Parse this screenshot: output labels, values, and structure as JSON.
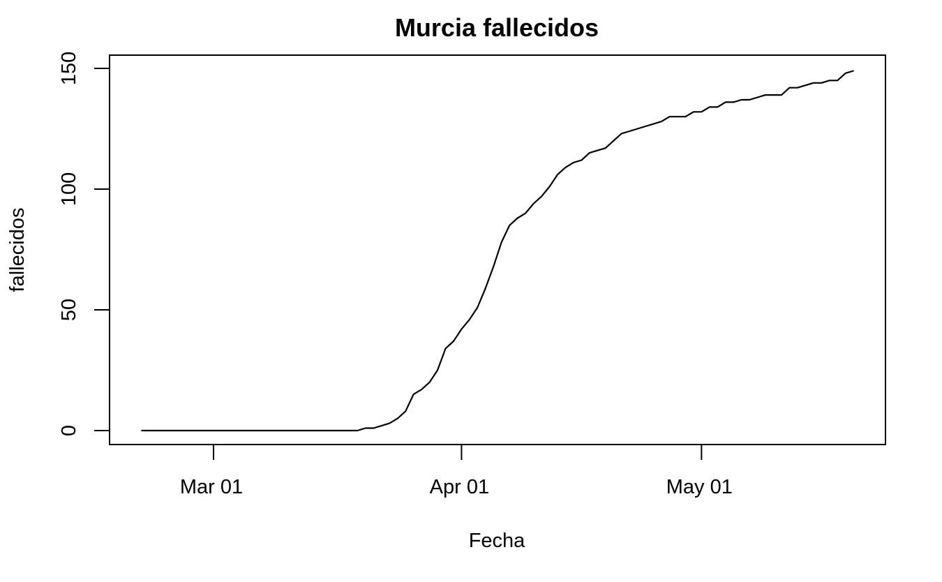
{
  "chart_data": {
    "type": "line",
    "title": "Murcia fallecidos",
    "xlabel": "Fecha",
    "ylabel": "fallecidos",
    "x_ticks": [
      {
        "date": "2020-03-01",
        "label": "Mar 01"
      },
      {
        "date": "2020-04-01",
        "label": "Apr 01"
      },
      {
        "date": "2020-05-01",
        "label": "May 01"
      }
    ],
    "y_ticks": [
      0,
      50,
      100,
      150
    ],
    "xlim": [
      "2020-02-17",
      "2020-05-24"
    ],
    "ylim": [
      0,
      150
    ],
    "grid": false,
    "line_color": "#000000",
    "series": [
      {
        "values": [
          [
            "2020-02-21",
            0
          ],
          [
            "2020-02-22",
            0
          ],
          [
            "2020-02-23",
            0
          ],
          [
            "2020-02-24",
            0
          ],
          [
            "2020-02-25",
            0
          ],
          [
            "2020-02-26",
            0
          ],
          [
            "2020-02-27",
            0
          ],
          [
            "2020-02-28",
            0
          ],
          [
            "2020-02-29",
            0
          ],
          [
            "2020-03-01",
            0
          ],
          [
            "2020-03-02",
            0
          ],
          [
            "2020-03-03",
            0
          ],
          [
            "2020-03-04",
            0
          ],
          [
            "2020-03-05",
            0
          ],
          [
            "2020-03-06",
            0
          ],
          [
            "2020-03-07",
            0
          ],
          [
            "2020-03-08",
            0
          ],
          [
            "2020-03-09",
            0
          ],
          [
            "2020-03-10",
            0
          ],
          [
            "2020-03-11",
            0
          ],
          [
            "2020-03-12",
            0
          ],
          [
            "2020-03-13",
            0
          ],
          [
            "2020-03-14",
            0
          ],
          [
            "2020-03-15",
            0
          ],
          [
            "2020-03-16",
            0
          ],
          [
            "2020-03-17",
            0
          ],
          [
            "2020-03-18",
            0
          ],
          [
            "2020-03-19",
            0
          ],
          [
            "2020-03-20",
            1
          ],
          [
            "2020-03-21",
            1
          ],
          [
            "2020-03-22",
            2
          ],
          [
            "2020-03-23",
            3
          ],
          [
            "2020-03-24",
            5
          ],
          [
            "2020-03-25",
            8
          ],
          [
            "2020-03-26",
            15
          ],
          [
            "2020-03-27",
            17
          ],
          [
            "2020-03-28",
            20
          ],
          [
            "2020-03-29",
            25
          ],
          [
            "2020-03-30",
            34
          ],
          [
            "2020-03-31",
            37
          ],
          [
            "2020-04-01",
            42
          ],
          [
            "2020-04-02",
            46
          ],
          [
            "2020-04-03",
            51
          ],
          [
            "2020-04-04",
            59
          ],
          [
            "2020-04-05",
            68
          ],
          [
            "2020-04-06",
            78
          ],
          [
            "2020-04-07",
            85
          ],
          [
            "2020-04-08",
            88
          ],
          [
            "2020-04-09",
            90
          ],
          [
            "2020-04-10",
            94
          ],
          [
            "2020-04-11",
            97
          ],
          [
            "2020-04-12",
            101
          ],
          [
            "2020-04-13",
            106
          ],
          [
            "2020-04-14",
            109
          ],
          [
            "2020-04-15",
            111
          ],
          [
            "2020-04-16",
            112
          ],
          [
            "2020-04-17",
            115
          ],
          [
            "2020-04-18",
            116
          ],
          [
            "2020-04-19",
            117
          ],
          [
            "2020-04-20",
            120
          ],
          [
            "2020-04-21",
            123
          ],
          [
            "2020-04-22",
            124
          ],
          [
            "2020-04-23",
            125
          ],
          [
            "2020-04-24",
            126
          ],
          [
            "2020-04-25",
            127
          ],
          [
            "2020-04-26",
            128
          ],
          [
            "2020-04-27",
            130
          ],
          [
            "2020-04-28",
            130
          ],
          [
            "2020-04-29",
            130
          ],
          [
            "2020-04-30",
            132
          ],
          [
            "2020-05-01",
            132
          ],
          [
            "2020-05-02",
            134
          ],
          [
            "2020-05-03",
            134
          ],
          [
            "2020-05-04",
            136
          ],
          [
            "2020-05-05",
            136
          ],
          [
            "2020-05-06",
            137
          ],
          [
            "2020-05-07",
            137
          ],
          [
            "2020-05-08",
            138
          ],
          [
            "2020-05-09",
            139
          ],
          [
            "2020-05-10",
            139
          ],
          [
            "2020-05-11",
            139
          ],
          [
            "2020-05-12",
            142
          ],
          [
            "2020-05-13",
            142
          ],
          [
            "2020-05-14",
            143
          ],
          [
            "2020-05-15",
            144
          ],
          [
            "2020-05-16",
            144
          ],
          [
            "2020-05-17",
            145
          ],
          [
            "2020-05-18",
            145
          ],
          [
            "2020-05-19",
            148
          ],
          [
            "2020-05-20",
            149
          ]
        ]
      }
    ]
  }
}
